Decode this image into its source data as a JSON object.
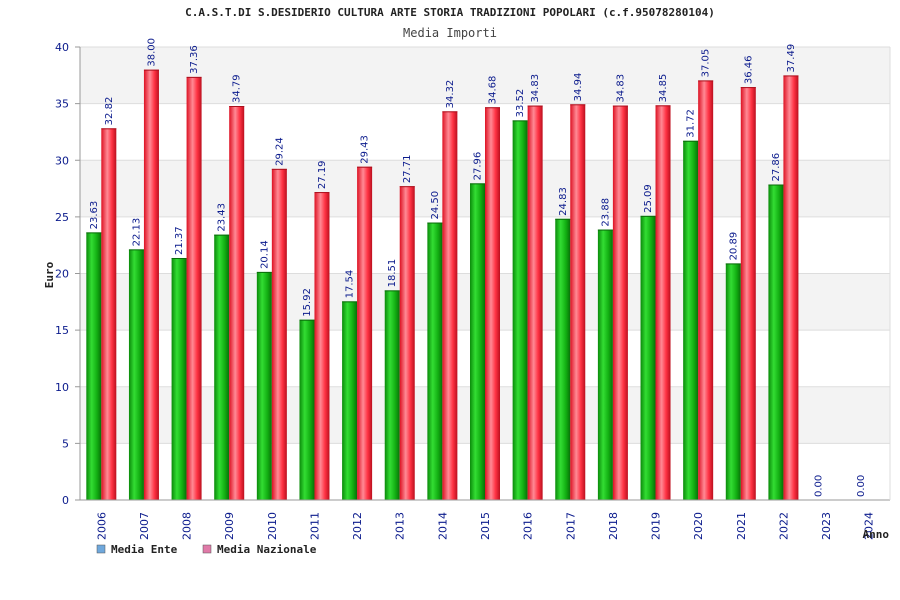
{
  "chart_data": {
    "type": "bar",
    "title": "C.A.S.T.DI S.DESIDERIO CULTURA ARTE STORIA TRADIZIONI POPOLARI (c.f.95078280104)",
    "subtitle": "Media Importi",
    "ylabel": "Euro",
    "xlabel": "Anno",
    "ylim": [
      0,
      40
    ],
    "yticks": [
      0,
      5,
      10,
      15,
      20,
      25,
      30,
      35,
      40
    ],
    "grid": true,
    "legend_position": "bottom-left",
    "categories": [
      "2006",
      "2007",
      "2008",
      "2009",
      "2010",
      "2011",
      "2012",
      "2013",
      "2014",
      "2015",
      "2016",
      "2017",
      "2018",
      "2019",
      "2020",
      "2021",
      "2022",
      "2023",
      "2024"
    ],
    "series": [
      {
        "name": "Media Ente",
        "color": "#11aa11",
        "legend_color": "#6fa8dc",
        "values": [
          23.63,
          22.13,
          21.37,
          23.43,
          20.14,
          15.92,
          17.54,
          18.51,
          24.5,
          27.96,
          33.52,
          24.83,
          23.88,
          25.09,
          31.72,
          20.89,
          27.86,
          0.0,
          0.0
        ],
        "labels": [
          "23.63",
          "22.13",
          "21.37",
          "23.43",
          "20.14",
          "15.92",
          "17.54",
          "18.51",
          "24.50",
          "27.96",
          "33.52",
          "24.83",
          "23.88",
          "25.09",
          "31.72",
          "20.89",
          "27.86",
          "0.00",
          "0.00"
        ]
      },
      {
        "name": "Media Nazionale",
        "color": "#ee2233",
        "legend_color": "#e07aa8",
        "values": [
          32.82,
          38.0,
          37.36,
          34.79,
          29.24,
          27.19,
          29.43,
          27.71,
          34.32,
          34.68,
          34.83,
          34.94,
          34.83,
          34.85,
          37.05,
          36.46,
          37.49,
          null,
          null
        ],
        "labels": [
          "32.82",
          "38.00",
          "37.36",
          "34.79",
          "29.24",
          "27.19",
          "29.43",
          "27.71",
          "34.32",
          "34.68",
          "34.83",
          "34.94",
          "34.83",
          "34.85",
          "37.05",
          "36.46",
          "37.49",
          null,
          null
        ]
      }
    ]
  }
}
